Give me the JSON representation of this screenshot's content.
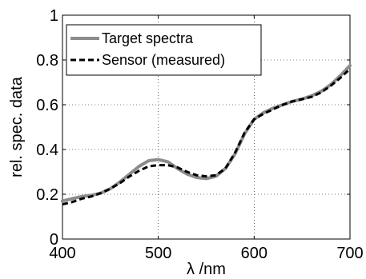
{
  "chart_data": {
    "type": "line",
    "title": "",
    "xlabel": "λ /nm",
    "ylabel": "rel. spec. data",
    "xlim": [
      400,
      700
    ],
    "ylim": [
      0,
      1
    ],
    "x_ticks": [
      400,
      500,
      600,
      700
    ],
    "y_ticks": [
      0,
      0.2,
      0.4,
      0.6,
      0.8,
      1
    ],
    "x_tick_labels": [
      "400",
      "500",
      "600",
      "700"
    ],
    "y_tick_labels": [
      "0",
      "0.2",
      "0.4",
      "0.6",
      "0.8",
      "1"
    ],
    "grid": true,
    "legend_position": "top-left",
    "series": [
      {
        "name": "Target spectra",
        "color": "#8c8c8c",
        "style": "solid",
        "x": [
          400,
          410,
          420,
          430,
          440,
          450,
          460,
          470,
          480,
          490,
          500,
          510,
          520,
          530,
          540,
          550,
          560,
          570,
          580,
          590,
          600,
          610,
          620,
          630,
          640,
          650,
          660,
          670,
          680,
          690,
          700
        ],
        "y": [
          0.17,
          0.18,
          0.19,
          0.195,
          0.205,
          0.225,
          0.255,
          0.29,
          0.325,
          0.35,
          0.355,
          0.345,
          0.315,
          0.29,
          0.275,
          0.27,
          0.28,
          0.315,
          0.38,
          0.47,
          0.535,
          0.565,
          0.585,
          0.6,
          0.615,
          0.625,
          0.64,
          0.66,
          0.69,
          0.73,
          0.775
        ]
      },
      {
        "name": "Sensor (measured)",
        "color": "#000000",
        "style": "dashed",
        "x": [
          400,
          410,
          420,
          430,
          440,
          450,
          460,
          470,
          480,
          490,
          500,
          510,
          520,
          530,
          540,
          550,
          560,
          570,
          580,
          590,
          600,
          610,
          620,
          630,
          640,
          650,
          660,
          670,
          680,
          690,
          700
        ],
        "y": [
          0.155,
          0.165,
          0.18,
          0.19,
          0.205,
          0.225,
          0.25,
          0.28,
          0.305,
          0.325,
          0.33,
          0.33,
          0.32,
          0.3,
          0.285,
          0.28,
          0.285,
          0.315,
          0.385,
          0.475,
          0.535,
          0.56,
          0.58,
          0.6,
          0.615,
          0.625,
          0.635,
          0.655,
          0.685,
          0.72,
          0.76
        ]
      }
    ]
  }
}
